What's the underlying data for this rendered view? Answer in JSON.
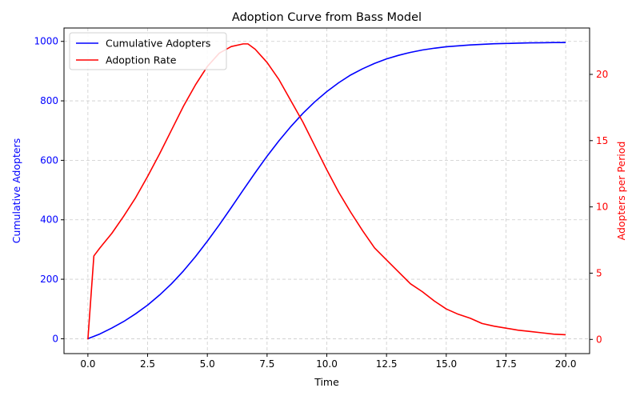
{
  "chart_data": {
    "type": "line",
    "title": "Adoption Curve from Bass Model",
    "xlabel": "Time",
    "ylabel_left": "Cumulative Adopters",
    "ylabel_right": "Adopters per Period",
    "xlim": [
      -1,
      21
    ],
    "ylim_left": [
      -50,
      1045
    ],
    "ylim_right": [
      -1.07,
      23.5
    ],
    "x_ticks": [
      0.0,
      2.5,
      5.0,
      7.5,
      10.0,
      12.5,
      15.0,
      17.5,
      20.0
    ],
    "x_tick_labels": [
      "0.0",
      "2.5",
      "5.0",
      "7.5",
      "10.0",
      "12.5",
      "15.0",
      "17.5",
      "20.0"
    ],
    "y_left_ticks": [
      0,
      200,
      400,
      600,
      800,
      1000
    ],
    "y_left_tick_labels": [
      "0",
      "200",
      "400",
      "600",
      "800",
      "1000"
    ],
    "y_right_ticks": [
      0,
      5,
      10,
      15,
      20
    ],
    "y_right_tick_labels": [
      "0",
      "5",
      "10",
      "15",
      "20"
    ],
    "grid": true,
    "legend_position": "top-left",
    "colors": {
      "left_axis": "#0000ff",
      "right_axis": "#ff0000",
      "cumulative": "#0000ff",
      "rate": "#ff0000",
      "grid": "#cccccc",
      "axes": "#000000"
    },
    "series": [
      {
        "name": "Cumulative Adopters",
        "axis": "left",
        "x": [
          0,
          0.5,
          1,
          1.5,
          2,
          2.5,
          3,
          3.5,
          4,
          4.5,
          5,
          5.5,
          6,
          6.5,
          7,
          7.5,
          8,
          8.5,
          9,
          9.5,
          10,
          10.5,
          11,
          11.5,
          12,
          12.5,
          13,
          13.5,
          14,
          14.5,
          15,
          15.5,
          16,
          16.5,
          17,
          17.5,
          18,
          18.5,
          19,
          19.5,
          20
        ],
        "values": [
          0,
          16,
          36,
          58,
          84,
          113,
          147,
          185,
          228,
          276,
          328,
          383,
          441,
          500,
          558,
          614,
          666,
          714,
          758,
          797,
          831,
          861,
          887,
          908,
          926,
          941,
          953,
          963,
          971,
          977,
          982,
          985,
          988,
          990,
          992,
          993,
          994,
          995,
          995.5,
          996,
          996
        ]
      },
      {
        "name": "Adoption Rate",
        "axis": "right",
        "x": [
          0,
          0.25,
          0.5,
          1,
          1.5,
          2,
          2.5,
          3,
          3.5,
          4,
          4.5,
          5,
          5.5,
          6,
          6.5,
          6.7,
          7,
          7.5,
          8,
          8.5,
          9,
          9.5,
          10,
          10.5,
          11,
          11.5,
          12,
          12.5,
          13,
          13.5,
          14,
          14.5,
          15,
          15.5,
          16,
          16.5,
          17,
          17.5,
          18,
          18.5,
          19,
          19.5,
          20
        ],
        "values": [
          0,
          6.3,
          6.9,
          8.0,
          9.3,
          10.7,
          12.3,
          14.0,
          15.8,
          17.6,
          19.2,
          20.6,
          21.6,
          22.1,
          22.3,
          22.3,
          21.9,
          20.9,
          19.6,
          18.0,
          16.4,
          14.6,
          12.8,
          11.1,
          9.6,
          8.2,
          6.9,
          6.0,
          5.1,
          4.2,
          3.6,
          2.9,
          2.3,
          1.9,
          1.6,
          1.2,
          1.0,
          0.85,
          0.7,
          0.6,
          0.5,
          0.4,
          0.35
        ]
      }
    ]
  }
}
